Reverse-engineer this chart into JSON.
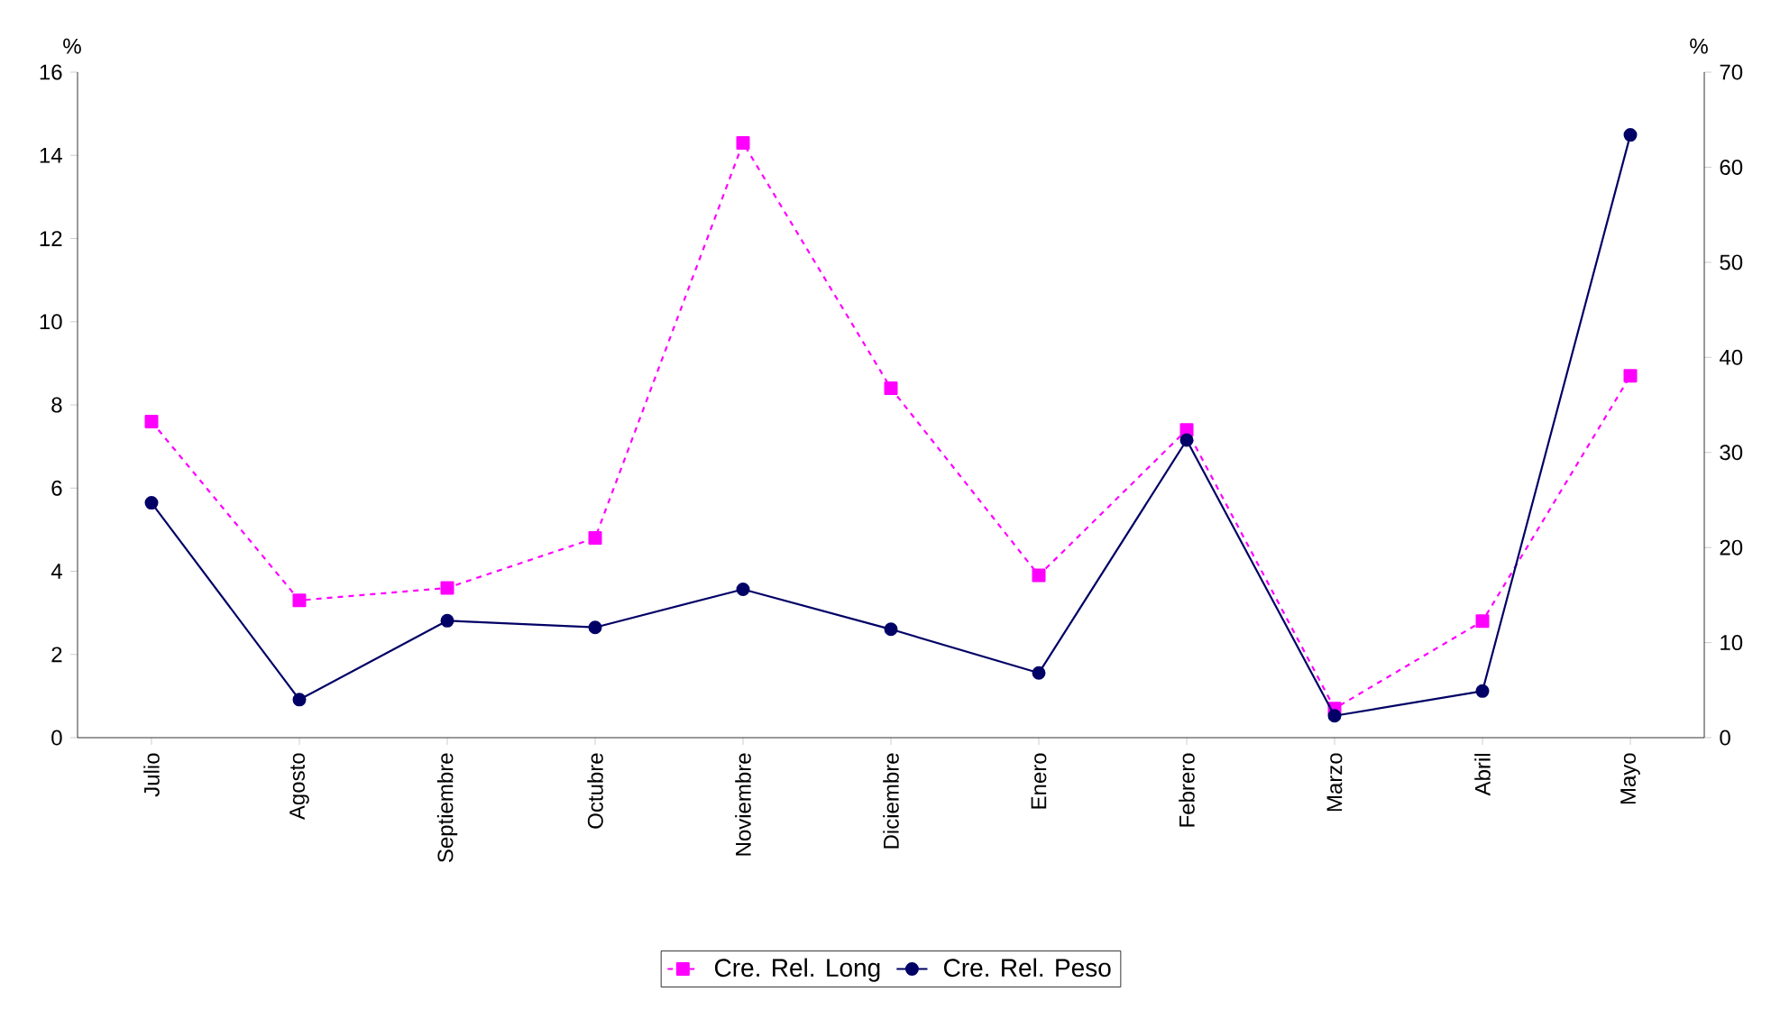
{
  "chart_data": {
    "type": "line",
    "ylabel": "%",
    "y2label": "%",
    "categories": [
      "Julio",
      "Agosto",
      "Septiembre",
      "Octubre",
      "Noviembre",
      "Diciembre",
      "Enero",
      "Febrero",
      "Marzo",
      "Abril",
      "Mayo"
    ],
    "ylim": [
      0,
      16
    ],
    "yticks": [
      0,
      2,
      4,
      6,
      8,
      10,
      12,
      14,
      16
    ],
    "y2lim": [
      0,
      70
    ],
    "y2ticks": [
      0,
      10,
      20,
      30,
      40,
      50,
      60,
      70
    ],
    "legend": "bottom",
    "grid": false,
    "series": [
      {
        "name": "Cre. Rel. Long",
        "color": "#ff00ff",
        "marker": "square",
        "line_style": "dashed",
        "values": [
          7.6,
          3.3,
          3.6,
          4.8,
          14.3,
          8.4,
          3.9,
          7.4,
          0.7,
          2.8,
          8.7
        ]
      },
      {
        "name": "Cre. Rel. Peso",
        "color": "#000066",
        "marker": "circle",
        "line_style": "solid",
        "axis": "y2",
        "values": [
          24.7,
          4.0,
          12.3,
          11.6,
          15.6,
          11.4,
          6.8,
          31.3,
          2.3,
          4.9,
          63.4
        ]
      }
    ]
  }
}
